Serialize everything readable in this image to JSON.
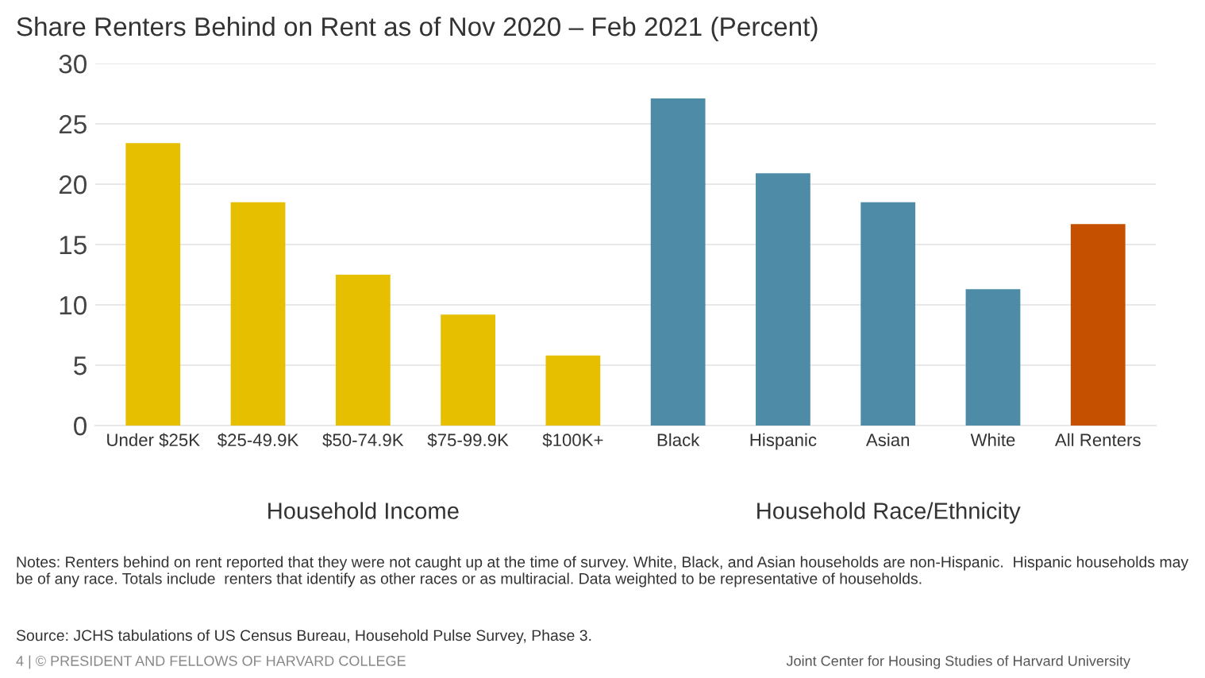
{
  "chart_data": {
    "type": "bar",
    "title": "Share Renters Behind on Rent as of Nov 2020 – Feb 2021 (Percent)",
    "categories": [
      "Under $25K",
      "$25-49.9K",
      "$50-74.9K",
      "$75-99.9K",
      "$100K+",
      "Black",
      "Hispanic",
      "Asian",
      "White",
      "All Renters"
    ],
    "values": [
      23.4,
      18.5,
      12.5,
      9.2,
      5.8,
      27.1,
      20.9,
      18.5,
      11.3,
      16.7
    ],
    "colors": [
      "#e6bf00",
      "#e6bf00",
      "#e6bf00",
      "#e6bf00",
      "#e6bf00",
      "#4e8ba6",
      "#4e8ba6",
      "#4e8ba6",
      "#4e8ba6",
      "#c55000"
    ],
    "ylim": [
      0,
      30
    ],
    "yticks": [
      0,
      5,
      10,
      15,
      20,
      25,
      30
    ],
    "grid": "y",
    "annotations": [
      "Household Income",
      "Household Race/Ethnicity",
      "Notes: Renters behind on rent reported that they were not caught up at the time of survey. White, Black, and Asian households are non-Hispanic.  Hispanic households may be of any race. Totals include  renters that identify as other races or as multiracial. Data weighted to be representative of households.",
      "Source: JCHS tabulations of US Census Bureau, Household Pulse Survey, Phase 3.",
      "4 | © PRESIDENT AND FELLOWS OF HARVARD COLLEGE",
      "Joint Center for Housing Studies of Harvard University"
    ]
  }
}
